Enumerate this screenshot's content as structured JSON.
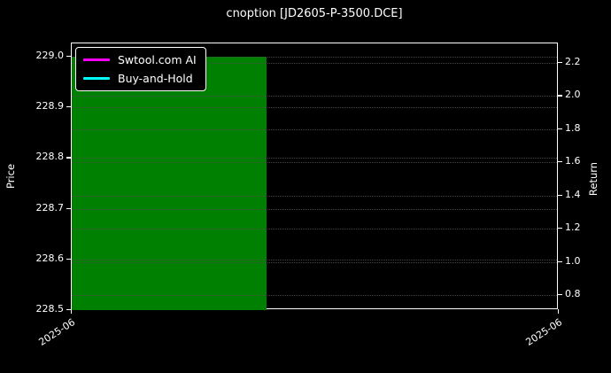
{
  "figure": {
    "title": "cnoption [JD2605-P-3500.DCE]",
    "background_color": "#000000",
    "frame_color": "#ffffff",
    "grid_color": "#4d4d4d",
    "text_color": "#ffffff"
  },
  "legend": {
    "items": [
      {
        "label": "Swtool.com AI",
        "color": "#ff00ff"
      },
      {
        "label": "Buy-and-Hold",
        "color": "#00ffff"
      }
    ]
  },
  "chart_data": {
    "type": "line",
    "title": "cnoption [JD2605-P-3500.DCE]",
    "grid": true,
    "legend_position": "upper left",
    "left_axis": {
      "label": "Price",
      "tick_labels": [
        "229.0",
        "228.9",
        "228.8",
        "228.7",
        "228.6",
        "228.5"
      ],
      "tick_values": [
        229.0,
        228.9,
        228.8,
        228.7,
        228.6,
        228.5
      ],
      "range": [
        228.5,
        229.025
      ]
    },
    "right_axis": {
      "label": "Return",
      "tick_labels": [
        "2.2",
        "2.0",
        "1.8",
        "1.6",
        "1.4",
        "1.2",
        "1.0",
        "0.8"
      ],
      "tick_values": [
        2.2,
        2.0,
        1.8,
        1.6,
        1.4,
        1.2,
        1.0,
        0.8
      ],
      "range": [
        0.71,
        2.32
      ]
    },
    "x_axis": {
      "tick_labels": [
        "2025-06",
        "2025-06"
      ],
      "tick_fractions": [
        0.0,
        1.0
      ]
    },
    "series": [
      {
        "name": "Swtool.com AI",
        "color": "#ff00ff",
        "axis": "right",
        "values": []
      },
      {
        "name": "Buy-and-Hold",
        "color": "#00ffff",
        "axis": "right",
        "values": []
      }
    ],
    "highlight_spans": [
      {
        "color": "#008000",
        "x_fraction_start": 0.0,
        "x_fraction_end": 0.4,
        "price_top": 229.0,
        "price_bottom": 228.5
      }
    ]
  }
}
